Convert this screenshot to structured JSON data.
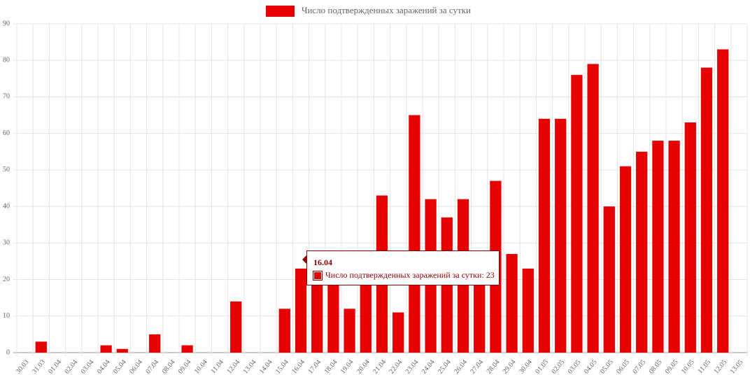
{
  "chart_data": {
    "type": "bar",
    "categories": [
      "30.03",
      "31.03",
      "01.04",
      "02.04",
      "03.04",
      "04.04",
      "05.04",
      "06.04",
      "07.04",
      "08.04",
      "09.04",
      "10.04",
      "11.04",
      "12.04",
      "13.04",
      "14.04",
      "15.04",
      "16.04",
      "17.04",
      "18.04",
      "19.04",
      "20.04",
      "21.04",
      "22.04",
      "23.04",
      "24.04",
      "25.04",
      "26.04",
      "27.04",
      "28.04",
      "29.04",
      "30.04",
      "01.05",
      "02.05",
      "03.05",
      "04.05",
      "05.05",
      "06.05",
      "07.05",
      "08.05",
      "09.05",
      "10.05",
      "11.05",
      "12.05",
      "13.05"
    ],
    "series": [
      {
        "name": "Число подтвержденных заражений за сутки",
        "color": "#e60000",
        "values": [
          0,
          3,
          0,
          0,
          0,
          2,
          1,
          0,
          5,
          0,
          2,
          0,
          0,
          14,
          0,
          0,
          12,
          23,
          22,
          20,
          12,
          25,
          43,
          11,
          65,
          42,
          37,
          42,
          24,
          47,
          27,
          23,
          64,
          64,
          76,
          79,
          40,
          51,
          55,
          58,
          58,
          63,
          78,
          83,
          0
        ]
      }
    ],
    "ylim": [
      0,
      90
    ],
    "yticks": [
      0,
      10,
      20,
      30,
      40,
      50,
      60,
      70,
      80,
      90
    ],
    "grid": true,
    "legend": "top"
  }
}
